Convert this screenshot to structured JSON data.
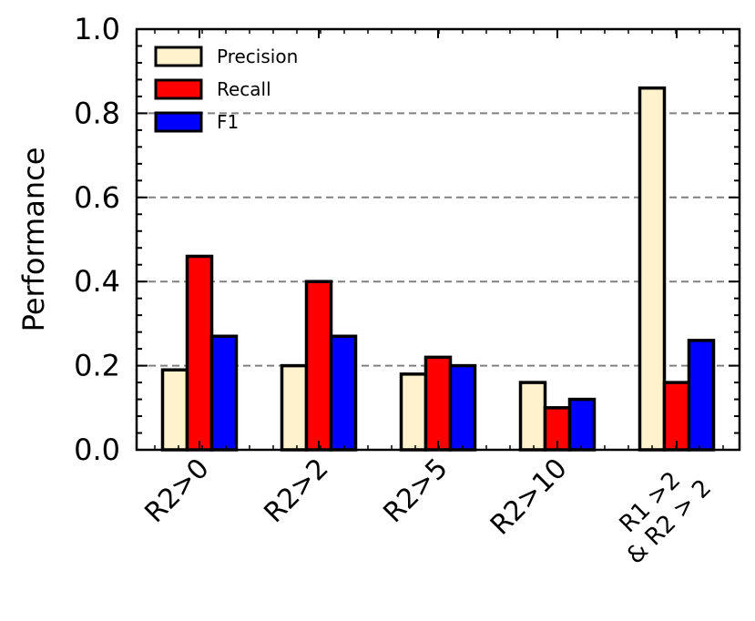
{
  "chart_data": {
    "type": "bar",
    "categories": [
      "R2>0",
      "R2>2",
      "R2>5",
      "R2>10",
      [
        "R1 >2",
        "& R2 > 2"
      ]
    ],
    "series": [
      {
        "name": "Precision",
        "color": "#fff2cc",
        "values": [
          0.19,
          0.2,
          0.18,
          0.16,
          0.86
        ]
      },
      {
        "name": "Recall",
        "color": "#ff0000",
        "values": [
          0.46,
          0.4,
          0.22,
          0.1,
          0.16
        ]
      },
      {
        "name": "F1",
        "color": "#0000ff",
        "values": [
          0.27,
          0.27,
          0.2,
          0.12,
          0.26
        ]
      }
    ],
    "title": "",
    "xlabel": "",
    "ylabel": "Performance",
    "ylim": [
      0,
      1.0
    ],
    "yticks": [
      "0.0",
      "0.2",
      "0.4",
      "0.6",
      "0.8",
      "1.0"
    ],
    "grid": "horizontal dashed at 0.2, 0.4, 0.6, 0.8",
    "legend_position": "top-left"
  }
}
